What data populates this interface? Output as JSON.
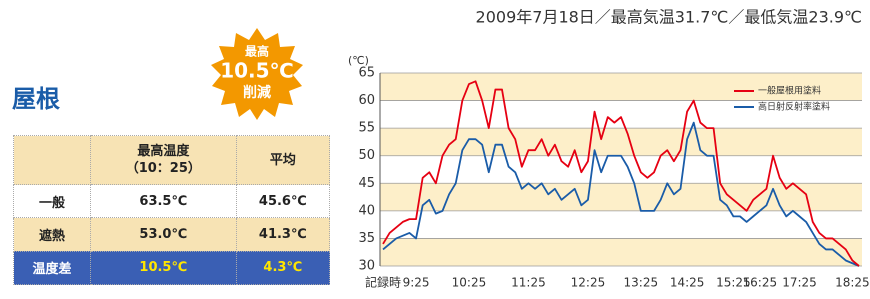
{
  "section_title": "屋根",
  "badge": {
    "lines": [
      "最高",
      "10.5℃",
      "削減"
    ]
  },
  "table": {
    "header": [
      [
        "最高温度",
        "（10：25）"
      ],
      [
        "平均"
      ]
    ],
    "rows": [
      [
        "一般",
        "63.5℃",
        "45.6℃"
      ],
      [
        "遮熱",
        "53.0℃",
        "41.3℃"
      ],
      [
        "温度差",
        "10.5℃",
        "4.3℃"
      ]
    ]
  },
  "chart_data": {
    "type": "line",
    "title": "2009年7月18日／最高気温31.7℃／最低気温23.9℃",
    "y_unit": "(℃)",
    "categories": [
      "記録時",
      null,
      null,
      null,
      null,
      "9:25",
      null,
      null,
      null,
      null,
      null,
      null,
      null,
      "10:25",
      null,
      null,
      null,
      null,
      null,
      null,
      null,
      null,
      "11:25",
      null,
      null,
      null,
      null,
      null,
      null,
      null,
      null,
      "12:25",
      null,
      null,
      null,
      null,
      null,
      null,
      null,
      "13:25",
      null,
      null,
      null,
      null,
      null,
      null,
      "14:25",
      null,
      null,
      null,
      null,
      null,
      null,
      "15:25",
      null,
      null,
      null,
      "16:25",
      null,
      null,
      null,
      null,
      null,
      "17:25",
      null,
      null,
      null,
      null,
      null,
      null,
      null,
      "18:25",
      null
    ],
    "series": [
      {
        "name": "一般屋根用塗料",
        "color": "#e60012",
        "values": [
          34,
          36,
          37,
          38,
          38.5,
          38.5,
          46,
          47,
          45,
          50,
          52,
          53,
          60,
          63,
          63.5,
          60,
          55,
          62,
          62,
          55,
          53,
          48,
          51,
          51,
          53,
          50,
          52,
          49,
          48,
          51,
          47,
          49,
          58,
          53,
          57,
          56,
          57,
          54,
          50,
          47,
          46,
          47,
          50,
          51,
          49,
          51,
          58,
          60,
          56,
          55,
          55,
          45,
          43,
          42,
          41,
          40,
          42,
          43,
          44,
          50,
          46,
          44,
          45,
          44,
          43,
          38,
          36,
          35,
          35,
          34,
          33,
          31,
          30
        ]
      },
      {
        "name": "高日射反射率塗料",
        "color": "#1a5ca8",
        "values": [
          33,
          34,
          35,
          35.5,
          36,
          35,
          41,
          42,
          39.5,
          40,
          43,
          45,
          51,
          53,
          53,
          52,
          47,
          52,
          52,
          48,
          47,
          44,
          45,
          44,
          45,
          43,
          44,
          42,
          43,
          44,
          41,
          42,
          51,
          47,
          50,
          50,
          50,
          48,
          45,
          40,
          40,
          40,
          42,
          45,
          43,
          44,
          53,
          56,
          51,
          50,
          50,
          42,
          41,
          39,
          39,
          38,
          39,
          40,
          41,
          44,
          41,
          39,
          40,
          39,
          38,
          36,
          34,
          33,
          33,
          32,
          31,
          30.5,
          30
        ]
      }
    ],
    "ylim": [
      30,
      65
    ],
    "yticks": [
      30,
      35,
      40,
      45,
      50,
      55,
      60,
      65
    ],
    "grid": true,
    "legend": "top-right"
  }
}
